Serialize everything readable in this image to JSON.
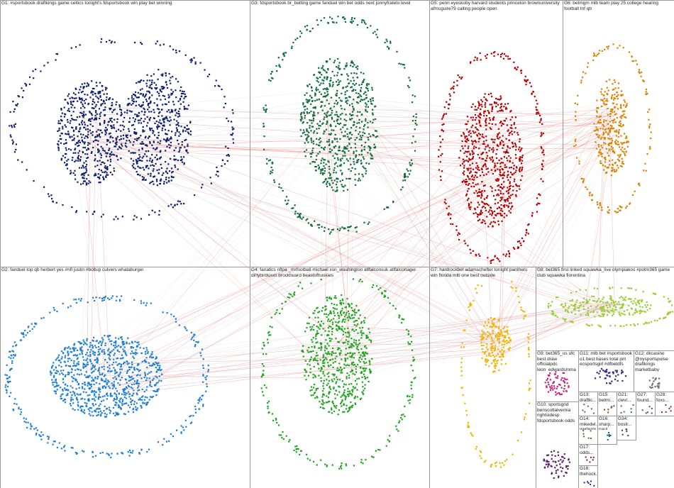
{
  "groups": [
    {
      "label": "G1: #sportsbook draftkings game celtics tonight's fdsportsbook win play bet winning",
      "color": "#0b1e6b"
    },
    {
      "label": "G3: fdsportsbook br_betting game fanduel win bet odds next jonnyfratelo level",
      "color": "#0e6b3a"
    },
    {
      "label": "G5: penn eyeskoby harvard students princeton brownuniversity afmcguire79 calling people open",
      "color": "#b00000"
    },
    {
      "label": "G6: betmgm mlb team play 25 college hearing football tnf qb",
      "color": "#d98200"
    },
    {
      "label": "G2: fanduel top qb herbert yes #nfl justin #boltup culvers whataburger",
      "color": "#1e7fd0"
    },
    {
      "label": "G4: fanatics nflpa _mrfootball michael xsn_washington atlfalconsuk atlfalconager dirtybirdsxxn brockhuard beastofhuskies",
      "color": "#1ea31e"
    },
    {
      "label": "G7: hardrockbet adamschefter tonight panthers win florida mlb one best outside",
      "color": "#f0b400"
    },
    {
      "label": "G8: bet365 first linked squawka_live olympiakos #potm365 game club squawka fiorentina",
      "color": "#9acd32"
    },
    {
      "label": "G9: bet365_us ufc best draw officialpdc leon_edwardsmma covers fdsportsbook fdr darts",
      "color": "#c0207f"
    },
    {
      "label": "G11: mlb bet #sportsbook o1 best bases total pm ecsportsgirl #dfbetdfs",
      "color": "#3a2a8a"
    },
    {
      "label": "G12: dkcasino @nysportspulse draftkings marketbaby casino mojomultigold players app tombingotogo #dkgoldgo",
      "color": "#6f6f6f"
    },
    {
      "label": "G10: sportsgrid benscottalvernia rightsidesp fdsportsbook odds joemaddensports dalfac jtns nba 221",
      "color": "#5a1a6b"
    },
    {
      "label": "G13: draftki... parlayis #fnfin...",
      "color": "#2f6fa0"
    },
    {
      "label": "G15: betmi... books...",
      "color": "#7a4a1a"
    },
    {
      "label": "G21: clevl...",
      "color": "#2a7a5a"
    },
    {
      "label": "G27: found...",
      "color": "#4a4a9a"
    },
    {
      "label": "G28: foxs...",
      "color": "#8a2a2a"
    },
    {
      "label": "G34: bostr...",
      "color": "#3a3a3a"
    },
    {
      "label": "G14: mikedel... vwrterm...",
      "color": "#5a6a1a"
    },
    {
      "label": "G16: sharp... paul...",
      "color": "#1a5a7a"
    },
    {
      "label": "G17: odds... fonrel...",
      "color": "#6a1a5a"
    },
    {
      "label": "G18: thehock... ohlhock...",
      "color": "#2a2a6a"
    }
  ]
}
